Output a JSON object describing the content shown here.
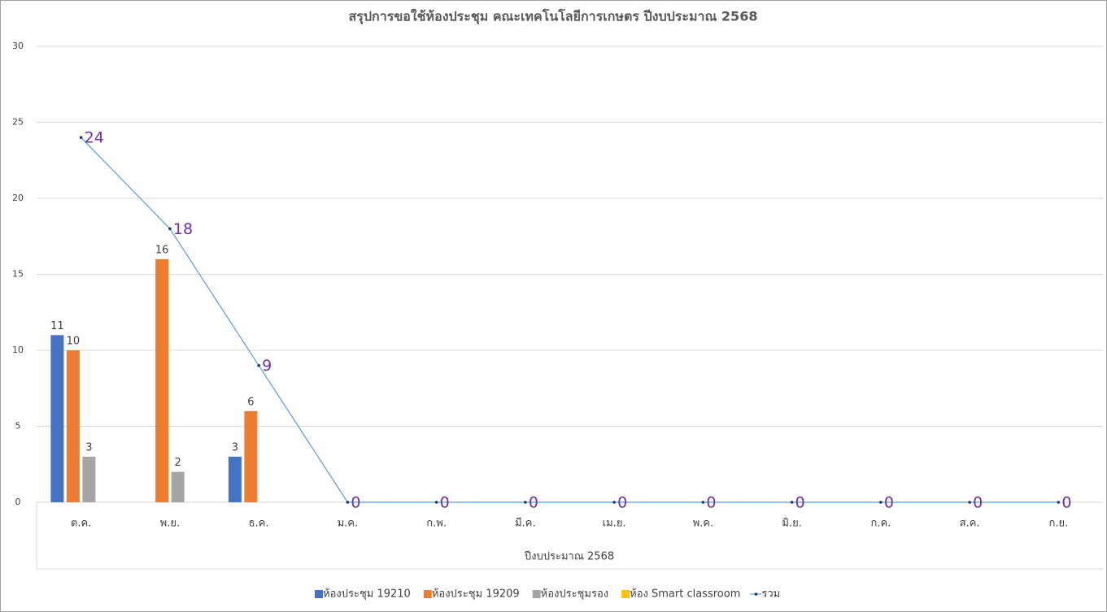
{
  "chart_data": {
    "type": "bar",
    "title": "สรุปการขอใช้ห้องประชุม คณะเทคโนโลยีการเกษตร ปีงบประมาณ 2568",
    "x_label": "ปีงบประมาณ 2568",
    "categories": [
      "ต.ค.",
      "พ.ย.",
      "ธ.ค.",
      "ม.ค.",
      "ก.พ.",
      "มี.ค.",
      "เม.ย.",
      "พ.ค.",
      "มิ.ย.",
      "ก.ค.",
      "ส.ค.",
      "ก.ย."
    ],
    "series": [
      {
        "name": "ห้องประชุม 19210",
        "color": "#4472c4",
        "values": [
          11,
          null,
          3,
          null,
          null,
          null,
          null,
          null,
          null,
          null,
          null,
          null
        ]
      },
      {
        "name": "ห้องประชุม 19209",
        "color": "#ed7d31",
        "values": [
          10,
          16,
          6,
          null,
          null,
          null,
          null,
          null,
          null,
          null,
          null,
          null
        ]
      },
      {
        "name": "ห้องประชุมรอง",
        "color": "#a5a5a5",
        "values": [
          3,
          2,
          null,
          null,
          null,
          null,
          null,
          null,
          null,
          null,
          null,
          null
        ]
      },
      {
        "name": "ห้อง Smart classroom",
        "color": "#ffc000",
        "values": [
          null,
          null,
          null,
          null,
          null,
          null,
          null,
          null,
          null,
          null,
          null,
          null
        ]
      },
      {
        "name": "รวม",
        "type": "line",
        "color": "#5b9bd5",
        "label_color": "#7030a0",
        "values": [
          24,
          18,
          9,
          0,
          0,
          0,
          0,
          0,
          0,
          0,
          0,
          0
        ]
      }
    ],
    "ylim": [
      0,
      30
    ],
    "yticks": [
      0,
      5,
      10,
      15,
      20,
      25,
      30
    ],
    "grid": true,
    "legend": "bottom"
  }
}
